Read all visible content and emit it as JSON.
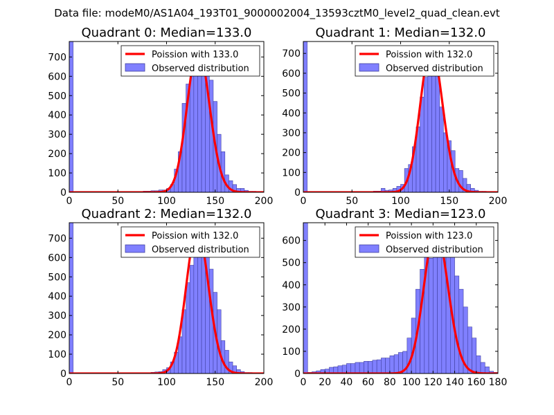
{
  "figure": {
    "suptitle": "Data file: modeM0/AS1A04_193T01_9000002004_13593cztM0_level2_quad_clean.evt"
  },
  "colors": {
    "histogram_fill": "#8080ff",
    "histogram_edge": "#4040a0",
    "poisson_line": "#ff0000",
    "axes": "#000000",
    "background": "#ffffff"
  },
  "chart_data": [
    {
      "type": "bar",
      "title": "Quadrant 0: Median=133.0",
      "median": 133.0,
      "peak": 742,
      "xlim": [
        0,
        200
      ],
      "ylim": [
        0,
        780
      ],
      "xticks": [
        0,
        50,
        100,
        150,
        200
      ],
      "yticks": [
        0,
        100,
        200,
        300,
        400,
        500,
        600,
        700
      ],
      "legend": [
        "Poission with 133.0",
        "Observed distribution"
      ],
      "legend_location": "upper-right",
      "bin_width": 4,
      "bins": [
        [
          0,
          780
        ],
        [
          4,
          2
        ],
        [
          8,
          2
        ],
        [
          12,
          2
        ],
        [
          16,
          2
        ],
        [
          20,
          2
        ],
        [
          24,
          2
        ],
        [
          28,
          2
        ],
        [
          32,
          2
        ],
        [
          36,
          2
        ],
        [
          40,
          2
        ],
        [
          44,
          2
        ],
        [
          48,
          2
        ],
        [
          52,
          2
        ],
        [
          56,
          2
        ],
        [
          60,
          2
        ],
        [
          64,
          2
        ],
        [
          68,
          2
        ],
        [
          72,
          4
        ],
        [
          76,
          6
        ],
        [
          80,
          6
        ],
        [
          84,
          8
        ],
        [
          88,
          8
        ],
        [
          92,
          12
        ],
        [
          96,
          12
        ],
        [
          100,
          20
        ],
        [
          104,
          40
        ],
        [
          108,
          120
        ],
        [
          112,
          210
        ],
        [
          116,
          460
        ],
        [
          120,
          560
        ],
        [
          124,
          640
        ],
        [
          128,
          620
        ],
        [
          132,
          690
        ],
        [
          136,
          740
        ],
        [
          140,
          640
        ],
        [
          144,
          580
        ],
        [
          148,
          470
        ],
        [
          152,
          300
        ],
        [
          156,
          210
        ],
        [
          160,
          90
        ],
        [
          164,
          60
        ],
        [
          168,
          40
        ],
        [
          172,
          20
        ],
        [
          176,
          20
        ],
        [
          180,
          10
        ],
        [
          184,
          5
        ],
        [
          188,
          5
        ],
        [
          192,
          3
        ]
      ]
    },
    {
      "type": "bar",
      "title": "Quadrant 1: Median=132.0",
      "median": 132.0,
      "peak": 730,
      "xlim": [
        0,
        200
      ],
      "ylim": [
        0,
        760
      ],
      "xticks": [
        0,
        50,
        100,
        150,
        200
      ],
      "yticks": [
        0,
        100,
        200,
        300,
        400,
        500,
        600,
        700
      ],
      "legend": [
        "Poission with 132.0",
        "Observed distribution"
      ],
      "legend_location": "upper-right",
      "bin_width": 4,
      "bins": [
        [
          0,
          760
        ],
        [
          4,
          2
        ],
        [
          8,
          2
        ],
        [
          12,
          2
        ],
        [
          16,
          2
        ],
        [
          20,
          2
        ],
        [
          24,
          2
        ],
        [
          28,
          2
        ],
        [
          32,
          2
        ],
        [
          36,
          2
        ],
        [
          40,
          2
        ],
        [
          44,
          2
        ],
        [
          48,
          2
        ],
        [
          52,
          2
        ],
        [
          56,
          2
        ],
        [
          60,
          4
        ],
        [
          64,
          2
        ],
        [
          68,
          2
        ],
        [
          72,
          6
        ],
        [
          76,
          6
        ],
        [
          80,
          20
        ],
        [
          84,
          10
        ],
        [
          88,
          12
        ],
        [
          92,
          20
        ],
        [
          96,
          30
        ],
        [
          100,
          40
        ],
        [
          104,
          120
        ],
        [
          108,
          140
        ],
        [
          112,
          230
        ],
        [
          116,
          330
        ],
        [
          120,
          480
        ],
        [
          124,
          580
        ],
        [
          128,
          720
        ],
        [
          132,
          650
        ],
        [
          136,
          600
        ],
        [
          140,
          430
        ],
        [
          144,
          300
        ],
        [
          148,
          260
        ],
        [
          152,
          210
        ],
        [
          156,
          120
        ],
        [
          160,
          110
        ],
        [
          164,
          70
        ],
        [
          168,
          40
        ],
        [
          172,
          20
        ],
        [
          176,
          10
        ],
        [
          180,
          5
        ],
        [
          184,
          5
        ],
        [
          188,
          2
        ],
        [
          192,
          2
        ]
      ]
    },
    {
      "type": "bar",
      "title": "Quadrant 2: Median=132.0",
      "median": 132.0,
      "peak": 745,
      "xlim": [
        0,
        200
      ],
      "ylim": [
        0,
        780
      ],
      "xticks": [
        0,
        50,
        100,
        150,
        200
      ],
      "yticks": [
        0,
        100,
        200,
        300,
        400,
        500,
        600,
        700
      ],
      "legend": [
        "Poission with 132.0",
        "Observed distribution"
      ],
      "legend_location": "upper-right",
      "bin_width": 4,
      "bins": [
        [
          0,
          780
        ],
        [
          4,
          2
        ],
        [
          8,
          2
        ],
        [
          12,
          2
        ],
        [
          16,
          2
        ],
        [
          20,
          2
        ],
        [
          24,
          2
        ],
        [
          28,
          2
        ],
        [
          32,
          2
        ],
        [
          36,
          2
        ],
        [
          40,
          2
        ],
        [
          44,
          2
        ],
        [
          48,
          2
        ],
        [
          52,
          2
        ],
        [
          56,
          2
        ],
        [
          60,
          2
        ],
        [
          64,
          2
        ],
        [
          68,
          2
        ],
        [
          72,
          2
        ],
        [
          76,
          2
        ],
        [
          80,
          4
        ],
        [
          84,
          6
        ],
        [
          88,
          8
        ],
        [
          92,
          10
        ],
        [
          96,
          20
        ],
        [
          100,
          30
        ],
        [
          104,
          60
        ],
        [
          108,
          110
        ],
        [
          112,
          190
        ],
        [
          116,
          330
        ],
        [
          120,
          470
        ],
        [
          124,
          560
        ],
        [
          128,
          620
        ],
        [
          132,
          650
        ],
        [
          136,
          720
        ],
        [
          140,
          660
        ],
        [
          144,
          540
        ],
        [
          148,
          420
        ],
        [
          152,
          330
        ],
        [
          156,
          170
        ],
        [
          160,
          120
        ],
        [
          164,
          60
        ],
        [
          168,
          40
        ],
        [
          172,
          20
        ],
        [
          176,
          10
        ],
        [
          180,
          5
        ],
        [
          184,
          5
        ],
        [
          188,
          2
        ]
      ]
    },
    {
      "type": "bar",
      "title": "Quadrant 3: Median=123.0",
      "median": 123.0,
      "peak": 650,
      "xlim": [
        0,
        180
      ],
      "ylim": [
        0,
        680
      ],
      "xticks": [
        0,
        20,
        40,
        60,
        80,
        100,
        120,
        140,
        160,
        180
      ],
      "yticks": [
        0,
        100,
        200,
        300,
        400,
        500,
        600
      ],
      "legend": [
        "Poission with 123.0",
        "Observed distribution"
      ],
      "legend_location": "upper-right",
      "bin_width": 4,
      "bins": [
        [
          0,
          680
        ],
        [
          4,
          5
        ],
        [
          8,
          8
        ],
        [
          12,
          12
        ],
        [
          16,
          18
        ],
        [
          20,
          20
        ],
        [
          24,
          28
        ],
        [
          28,
          30
        ],
        [
          32,
          35
        ],
        [
          36,
          38
        ],
        [
          40,
          45
        ],
        [
          44,
          45
        ],
        [
          48,
          50
        ],
        [
          52,
          50
        ],
        [
          56,
          55
        ],
        [
          60,
          55
        ],
        [
          64,
          60
        ],
        [
          68,
          62
        ],
        [
          72,
          70
        ],
        [
          76,
          70
        ],
        [
          80,
          80
        ],
        [
          84,
          85
        ],
        [
          88,
          95
        ],
        [
          92,
          100
        ],
        [
          96,
          160
        ],
        [
          100,
          250
        ],
        [
          104,
          380
        ],
        [
          108,
          470
        ],
        [
          112,
          560
        ],
        [
          116,
          520
        ],
        [
          120,
          650
        ],
        [
          124,
          600
        ],
        [
          128,
          660
        ],
        [
          132,
          620
        ],
        [
          136,
          640
        ],
        [
          140,
          440
        ],
        [
          144,
          380
        ],
        [
          148,
          300
        ],
        [
          152,
          210
        ],
        [
          156,
          160
        ],
        [
          160,
          80
        ],
        [
          164,
          50
        ],
        [
          168,
          30
        ],
        [
          172,
          10
        ],
        [
          176,
          5
        ]
      ]
    }
  ]
}
